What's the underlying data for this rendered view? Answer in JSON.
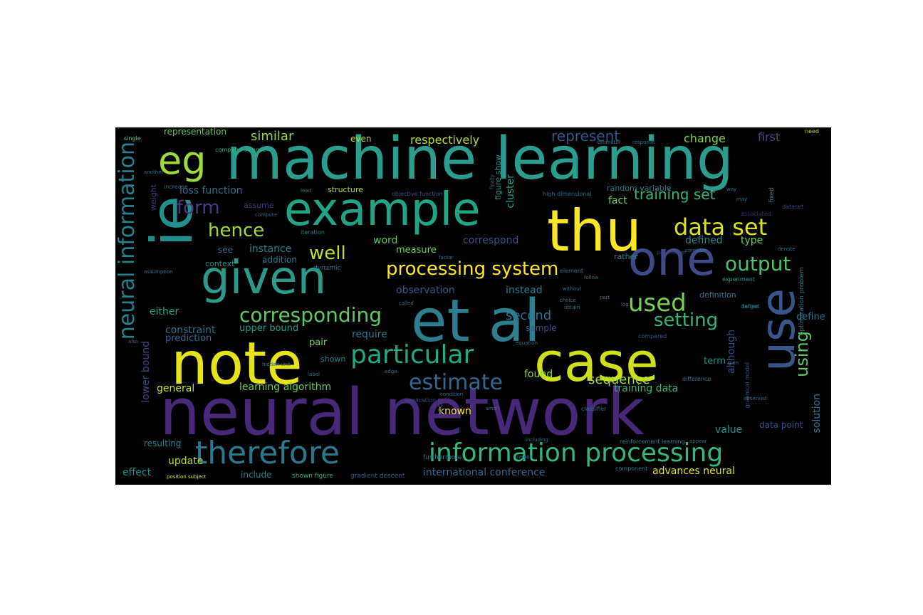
{
  "wordcloud": {
    "background": "#000000",
    "colormap": "viridis",
    "words": [
      {
        "t": "machine learning",
        "c": "#2a9d8f"
      },
      {
        "t": "neural network",
        "c": "#482878"
      },
      {
        "t": "example",
        "c": "#20a486"
      },
      {
        "t": "et al",
        "c": "#2c7f8e"
      },
      {
        "t": "note",
        "c": "#e5e419"
      },
      {
        "t": "case",
        "c": "#d0e11c"
      },
      {
        "t": "thu",
        "c": "#fde725"
      },
      {
        "t": "use",
        "c": "#3a548c"
      },
      {
        "t": "given",
        "c": "#2a9a8a"
      },
      {
        "t": "ie",
        "c": "#21908d"
      },
      {
        "t": "eg",
        "c": "#a0da39"
      },
      {
        "t": "one",
        "c": "#3e4a89"
      },
      {
        "t": "therefore",
        "c": "#2a788e"
      },
      {
        "t": "information processing",
        "c": "#35b779"
      },
      {
        "t": "particular",
        "c": "#22a884"
      },
      {
        "t": "neural information",
        "c": "#26828e"
      },
      {
        "t": "processing system",
        "c": "#fde725"
      },
      {
        "t": "corresponding",
        "c": "#5ec962"
      },
      {
        "t": "data set",
        "c": "#dde318"
      },
      {
        "t": "used",
        "c": "#7ad151"
      },
      {
        "t": "output",
        "c": "#4ac16d"
      },
      {
        "t": "hence",
        "c": "#9fda3a"
      },
      {
        "t": "estimate",
        "c": "#31688e"
      },
      {
        "t": "setting",
        "c": "#31b57b"
      },
      {
        "t": "form",
        "c": "#443a83"
      },
      {
        "t": "well",
        "c": "#c2df23"
      },
      {
        "t": "using",
        "c": "#5cc863"
      },
      {
        "t": "training set",
        "c": "#35b779"
      },
      {
        "t": "represent",
        "c": "#3b528b"
      },
      {
        "t": "similar",
        "c": "#90d743"
      },
      {
        "t": "respectively",
        "c": "#b5de2b"
      },
      {
        "t": "second",
        "c": "#2c728e"
      },
      {
        "t": "sequence",
        "c": "#9fda3a"
      },
      {
        "t": "change",
        "c": "#7ad151"
      },
      {
        "t": "first",
        "c": "#3e4989"
      },
      {
        "t": "advances neural",
        "c": "#e5e419"
      },
      {
        "t": "international conference",
        "c": "#31688e"
      },
      {
        "t": "learning algorithm",
        "c": "#6ccd5a"
      },
      {
        "t": "update",
        "c": "#b8de29"
      },
      {
        "t": "effect",
        "c": "#21918c"
      },
      {
        "t": "general",
        "c": "#c8e020"
      },
      {
        "t": "lower bound",
        "c": "#3f4788"
      },
      {
        "t": "loss function",
        "c": "#2d708e"
      },
      {
        "t": "instance",
        "c": "#27808e"
      },
      {
        "t": "constraint",
        "c": "#2c728e"
      },
      {
        "t": "upper bound",
        "c": "#2a9a8a"
      },
      {
        "t": "prediction",
        "c": "#31688e"
      },
      {
        "t": "either",
        "c": "#1fa187"
      },
      {
        "t": "require",
        "c": "#2a788e"
      },
      {
        "t": "observation",
        "c": "#38588c"
      },
      {
        "t": "instead",
        "c": "#2a7f8e"
      },
      {
        "t": "measure",
        "c": "#6ece58"
      },
      {
        "t": "correspond",
        "c": "#3b528b"
      },
      {
        "t": "word",
        "c": "#52c569"
      },
      {
        "t": "fact",
        "c": "#7fd34e"
      },
      {
        "t": "cluster",
        "c": "#1fa188"
      },
      {
        "t": "defined",
        "c": "#25858e"
      },
      {
        "t": "type",
        "c": "#6ece58"
      },
      {
        "t": "found",
        "c": "#86d549"
      },
      {
        "t": "known",
        "c": "#fde725"
      },
      {
        "t": "training data",
        "c": "#35b779"
      },
      {
        "t": "value",
        "c": "#21918c"
      },
      {
        "t": "solution",
        "c": "#2a788e"
      },
      {
        "t": "data point",
        "c": "#3b528b"
      },
      {
        "t": "although",
        "c": "#3e4989"
      },
      {
        "t": "define",
        "c": "#2c728e"
      },
      {
        "t": "term",
        "c": "#21918c"
      },
      {
        "t": "representation",
        "c": "#5ec962"
      },
      {
        "t": "addition",
        "c": "#2a788e"
      },
      {
        "t": "context",
        "c": "#21918c"
      },
      {
        "t": "see",
        "c": "#31688e"
      },
      {
        "t": "pair",
        "c": "#7ad151"
      },
      {
        "t": "shown",
        "c": "#23898e"
      },
      {
        "t": "sample",
        "c": "#3b528b"
      },
      {
        "t": "resulting",
        "c": "#24868e"
      },
      {
        "t": "include",
        "c": "#26828e"
      },
      {
        "t": "structure",
        "c": "#b5de2b"
      },
      {
        "t": "assume",
        "c": "#453781"
      },
      {
        "t": "weight",
        "c": "#443983"
      },
      {
        "t": "figure show",
        "c": "#20928c"
      },
      {
        "t": "random variable",
        "c": "#287d8e"
      },
      {
        "t": "node",
        "c": "#433e85"
      },
      {
        "t": "definition",
        "c": "#2c728e"
      },
      {
        "t": "rather",
        "c": "#25848e"
      },
      {
        "t": "even",
        "c": "#c0df25"
      },
      {
        "t": "shown figure",
        "c": "#2ab07f"
      },
      {
        "t": "gradient descent",
        "c": "#39568c"
      },
      {
        "t": "iteration",
        "c": "#26828e"
      },
      {
        "t": "dynamic",
        "c": "#2c728e"
      },
      {
        "t": "objective function",
        "c": "#3a548c"
      },
      {
        "t": "reinforcement learning",
        "c": "#26828e"
      },
      {
        "t": "optimization problem",
        "c": "#2d718e"
      },
      {
        "t": "high dimensional",
        "c": "#31688e"
      },
      {
        "t": "computer science",
        "c": "#2fb47c"
      },
      {
        "t": "position subject",
        "c": "#e5e419"
      },
      {
        "t": "furthermore",
        "c": "#2a788e"
      },
      {
        "t": "application",
        "c": "#3e4a89"
      },
      {
        "t": "classifier",
        "c": "#2c728e"
      },
      {
        "t": "graphical model",
        "c": "#3b528b"
      },
      {
        "t": "component",
        "c": "#2a788e"
      },
      {
        "t": "experiment",
        "c": "#1f9e89"
      },
      {
        "t": "compared",
        "c": "#3b528b"
      },
      {
        "t": "element",
        "c": "#2c728e"
      },
      {
        "t": "parameter",
        "c": "#433e85"
      },
      {
        "t": "dataset",
        "c": "#3f4889"
      },
      {
        "t": "associated",
        "c": "#482878"
      },
      {
        "t": "single",
        "c": "#5ec962"
      },
      {
        "t": "need",
        "c": "#c2df23"
      },
      {
        "t": "fixed",
        "c": "#2a788e"
      },
      {
        "t": "increase",
        "c": "#2c728e"
      },
      {
        "t": "compute",
        "c": "#31688e"
      },
      {
        "t": "lead",
        "c": "#2c728e"
      },
      {
        "t": "another",
        "c": "#2c728e"
      },
      {
        "t": "finally",
        "c": "#2c728e"
      },
      {
        "t": "denote",
        "c": "#2c728e"
      },
      {
        "t": "define",
        "c": "#2c728e"
      },
      {
        "t": "target",
        "c": "#2c728e"
      },
      {
        "t": "log",
        "c": "#2c728e"
      },
      {
        "t": "way",
        "c": "#2c728e"
      },
      {
        "t": "consider",
        "c": "#2c728e"
      },
      {
        "t": "choice",
        "c": "#2c728e"
      },
      {
        "t": "region",
        "c": "#2c728e"
      },
      {
        "t": "edge",
        "c": "#2c728e"
      },
      {
        "t": "label",
        "c": "#2c728e"
      },
      {
        "t": "small",
        "c": "#2c728e"
      },
      {
        "t": "equation",
        "c": "#2c728e"
      },
      {
        "t": "without",
        "c": "#2c728e"
      },
      {
        "t": "part",
        "c": "#2c728e"
      },
      {
        "t": "gain",
        "c": "#2c728e"
      },
      {
        "t": "may",
        "c": "#2c728e"
      },
      {
        "t": "called",
        "c": "#2c728e"
      },
      {
        "t": "factor",
        "c": "#2c728e"
      },
      {
        "t": "difference",
        "c": "#2c728e"
      },
      {
        "t": "obtain",
        "c": "#2c728e"
      },
      {
        "t": "observed",
        "c": "#2c728e"
      },
      {
        "t": "assumption",
        "c": "#2c728e"
      },
      {
        "t": "also",
        "c": "#2c728e"
      },
      {
        "t": "including",
        "c": "#2c728e"
      },
      {
        "t": "hidden unit",
        "c": "#2c728e"
      },
      {
        "t": "appear",
        "c": "#2c728e"
      },
      {
        "t": "condition",
        "c": "#2c728e"
      },
      {
        "t": "follow",
        "c": "#2c728e"
      },
      {
        "t": "estimator",
        "c": "#2c728e"
      },
      {
        "t": "response",
        "c": "#2c728e"
      }
    ]
  }
}
